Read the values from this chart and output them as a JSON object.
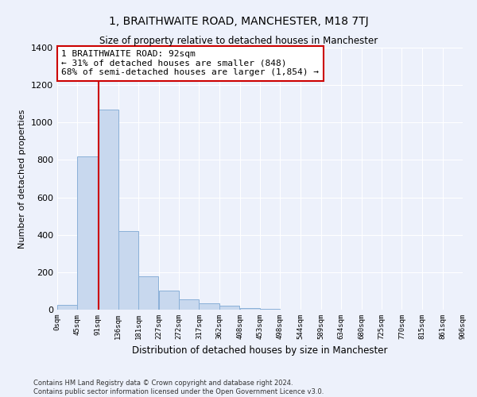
{
  "title": "1, BRAITHWAITE ROAD, MANCHESTER, M18 7TJ",
  "subtitle": "Size of property relative to detached houses in Manchester",
  "xlabel": "Distribution of detached houses by size in Manchester",
  "ylabel": "Number of detached properties",
  "bar_color": "#c8d8ee",
  "bar_edge_color": "#8ab0d8",
  "background_color": "#edf1fb",
  "grid_color": "#ffffff",
  "bin_labels": [
    "0sqm",
    "45sqm",
    "91sqm",
    "136sqm",
    "181sqm",
    "227sqm",
    "272sqm",
    "317sqm",
    "362sqm",
    "408sqm",
    "453sqm",
    "498sqm",
    "544sqm",
    "589sqm",
    "634sqm",
    "680sqm",
    "725sqm",
    "770sqm",
    "815sqm",
    "861sqm",
    "906sqm"
  ],
  "bar_values": [
    25,
    820,
    1070,
    420,
    178,
    100,
    55,
    35,
    22,
    10,
    5,
    2,
    1,
    0,
    0,
    0,
    0,
    0,
    0,
    0
  ],
  "bin_edges": [
    0,
    45,
    91,
    136,
    181,
    227,
    272,
    317,
    362,
    408,
    453,
    498,
    544,
    589,
    634,
    680,
    725,
    770,
    815,
    861,
    906
  ],
  "ylim": [
    0,
    1400
  ],
  "yticks": [
    0,
    200,
    400,
    600,
    800,
    1000,
    1200,
    1400
  ],
  "vline_x": 92,
  "annotation_text": "1 BRAITHWAITE ROAD: 92sqm\n← 31% of detached houses are smaller (848)\n68% of semi-detached houses are larger (1,854) →",
  "annotation_box_color": "#ffffff",
  "annotation_border_color": "#cc0000",
  "footer_line1": "Contains HM Land Registry data © Crown copyright and database right 2024.",
  "footer_line2": "Contains public sector information licensed under the Open Government Licence v3.0."
}
